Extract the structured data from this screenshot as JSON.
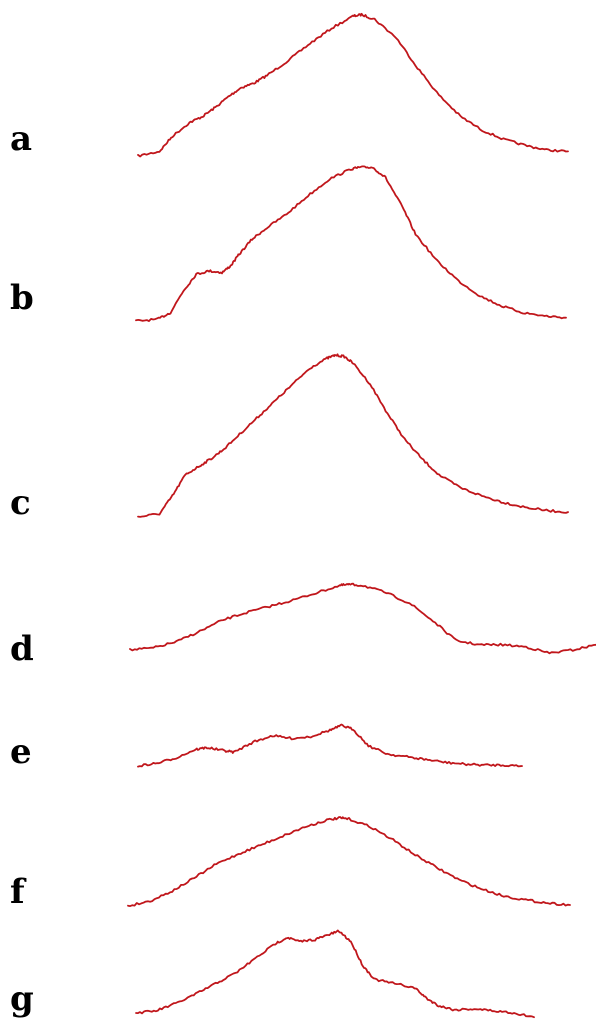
{
  "chart_data": {
    "type": "line",
    "title": "",
    "xlabel": "",
    "ylabel": "",
    "grid": false,
    "axes_visible": false,
    "color": "#c0161b",
    "xlim": [
      0,
      100
    ],
    "panels": [
      {
        "label": "a",
        "series": [
          {
            "x": [
              0,
              5,
              8,
              12,
              15,
              18,
              21,
              24,
              27,
              30,
              35,
              40,
              45,
              50,
              52,
              55,
              60,
              65,
              70,
              75,
              80,
              85,
              90,
              95,
              100
            ],
            "y": [
              0.0,
              0.03,
              0.13,
              0.22,
              0.26,
              0.32,
              0.39,
              0.45,
              0.48,
              0.53,
              0.63,
              0.74,
              0.84,
              0.92,
              0.93,
              0.9,
              0.78,
              0.58,
              0.4,
              0.26,
              0.17,
              0.11,
              0.07,
              0.04,
              0.03
            ]
          }
        ]
      },
      {
        "label": "b",
        "series": [
          {
            "x": [
              0,
              5,
              8,
              11,
              14,
              17,
              20,
              22,
              24,
              27,
              30,
              35,
              40,
              45,
              50,
              52,
              55,
              58,
              62,
              65,
              70,
              75,
              80,
              85,
              90,
              95,
              100
            ],
            "y": [
              0.0,
              0.01,
              0.05,
              0.18,
              0.28,
              0.3,
              0.29,
              0.33,
              0.4,
              0.49,
              0.55,
              0.64,
              0.75,
              0.85,
              0.91,
              0.92,
              0.92,
              0.86,
              0.68,
              0.52,
              0.36,
              0.24,
              0.15,
              0.09,
              0.05,
              0.03,
              0.02
            ]
          }
        ]
      },
      {
        "label": "c",
        "series": [
          {
            "x": [
              0,
              5,
              8,
              11,
              14,
              17,
              20,
              24,
              28,
              32,
              36,
              40,
              44,
              46,
              48,
              50,
              54,
              58,
              62,
              66,
              70,
              75,
              80,
              85,
              90,
              95,
              100
            ],
            "y": [
              0.0,
              0.02,
              0.13,
              0.26,
              0.31,
              0.36,
              0.42,
              0.52,
              0.62,
              0.72,
              0.82,
              0.92,
              0.98,
              1.0,
              0.99,
              0.95,
              0.82,
              0.64,
              0.48,
              0.36,
              0.26,
              0.18,
              0.13,
              0.09,
              0.06,
              0.04,
              0.03
            ]
          }
        ]
      },
      {
        "label": "d",
        "series": [
          {
            "x": [
              0,
              5,
              10,
              15,
              20,
              25,
              30,
              35,
              40,
              45,
              47,
              50,
              55,
              60,
              65,
              70,
              75,
              80,
              85,
              90,
              95,
              100
            ],
            "y": [
              0.0,
              0.02,
              0.08,
              0.18,
              0.29,
              0.36,
              0.42,
              0.48,
              0.55,
              0.62,
              0.63,
              0.62,
              0.55,
              0.45,
              0.28,
              0.09,
              0.05,
              0.05,
              0.03,
              -0.03,
              0.0,
              0.05
            ]
          }
        ]
      },
      {
        "label": "e",
        "series": [
          {
            "x": [
              0,
              5,
              10,
              15,
              18,
              22,
              25,
              30,
              35,
              40,
              45,
              50,
              53,
              56,
              60,
              65,
              70,
              75,
              80,
              85,
              90,
              95,
              100
            ],
            "y": [
              0.0,
              0.03,
              0.09,
              0.18,
              0.2,
              0.17,
              0.15,
              0.26,
              0.33,
              0.3,
              0.32,
              0.39,
              0.44,
              0.4,
              0.22,
              0.13,
              0.1,
              0.07,
              0.04,
              0.02,
              0.01,
              0.01,
              0.0
            ]
          }
        ]
      },
      {
        "label": "f",
        "series": [
          {
            "x": [
              0,
              5,
              10,
              15,
              20,
              25,
              30,
              35,
              40,
              45,
              48,
              50,
              55,
              60,
              65,
              70,
              75,
              80,
              85,
              90,
              95,
              100
            ],
            "y": [
              0.0,
              0.05,
              0.15,
              0.28,
              0.42,
              0.52,
              0.61,
              0.7,
              0.79,
              0.86,
              0.88,
              0.87,
              0.79,
              0.66,
              0.51,
              0.38,
              0.26,
              0.17,
              0.1,
              0.06,
              0.03,
              0.01
            ]
          }
        ]
      },
      {
        "label": "g",
        "series": [
          {
            "x": [
              0,
              5,
              10,
              15,
              20,
              25,
              30,
              35,
              38,
              41,
              45,
              48,
              51,
              54,
              57,
              60,
              65,
              70,
              73,
              76,
              80,
              85,
              90,
              95,
              100
            ],
            "y": [
              0.0,
              0.02,
              0.09,
              0.18,
              0.28,
              0.38,
              0.52,
              0.66,
              0.72,
              0.68,
              0.7,
              0.74,
              0.78,
              0.68,
              0.45,
              0.32,
              0.28,
              0.24,
              0.14,
              0.07,
              0.03,
              0.04,
              0.02,
              0.0,
              -0.04
            ]
          }
        ]
      }
    ]
  }
}
